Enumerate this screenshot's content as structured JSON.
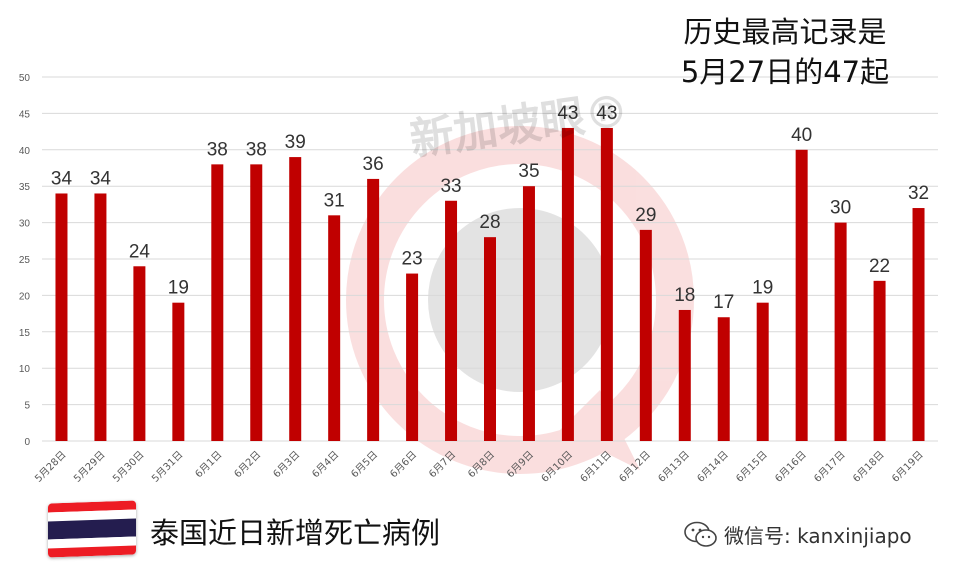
{
  "annotation": {
    "line1": "历史最高记录是",
    "line2": "5月27日的47起"
  },
  "footer": {
    "title": "泰国近日新增死亡病例",
    "wechat_label": "微信号: kanxinjiapo"
  },
  "watermark": {
    "text": "新加坡眼®"
  },
  "flag": {
    "name": "thailand-flag-icon",
    "colors": [
      "#ED1C24",
      "#FFFFFF",
      "#241D4F",
      "#FFFFFF",
      "#ED1C24"
    ]
  },
  "colors": {
    "bar": "#C00000",
    "grid": "#D9D9D9",
    "watermark": "#E23B3B"
  },
  "chart_data": {
    "type": "bar",
    "title": "",
    "xlabel": "",
    "ylabel": "",
    "categories": [
      "5月28日",
      "5月29日",
      "5月30日",
      "5月31日",
      "6月1日",
      "6月2日",
      "6月3日",
      "6月4日",
      "6月5日",
      "6月6日",
      "6月7日",
      "6月8日",
      "6月9日",
      "6月10日",
      "6月11日",
      "6月12日",
      "6月13日",
      "6月14日",
      "6月15日",
      "6月16日",
      "6月17日",
      "6月18日",
      "6月19日"
    ],
    "values": [
      34,
      34,
      24,
      19,
      38,
      38,
      39,
      31,
      36,
      23,
      33,
      28,
      35,
      43,
      43,
      29,
      18,
      17,
      19,
      40,
      30,
      22,
      32
    ],
    "ylim": [
      0,
      50
    ],
    "yticks": [
      0,
      5,
      10,
      15,
      20,
      25,
      30,
      35,
      40,
      45,
      50
    ],
    "grid": true,
    "legend": "none",
    "data_labels": true
  }
}
